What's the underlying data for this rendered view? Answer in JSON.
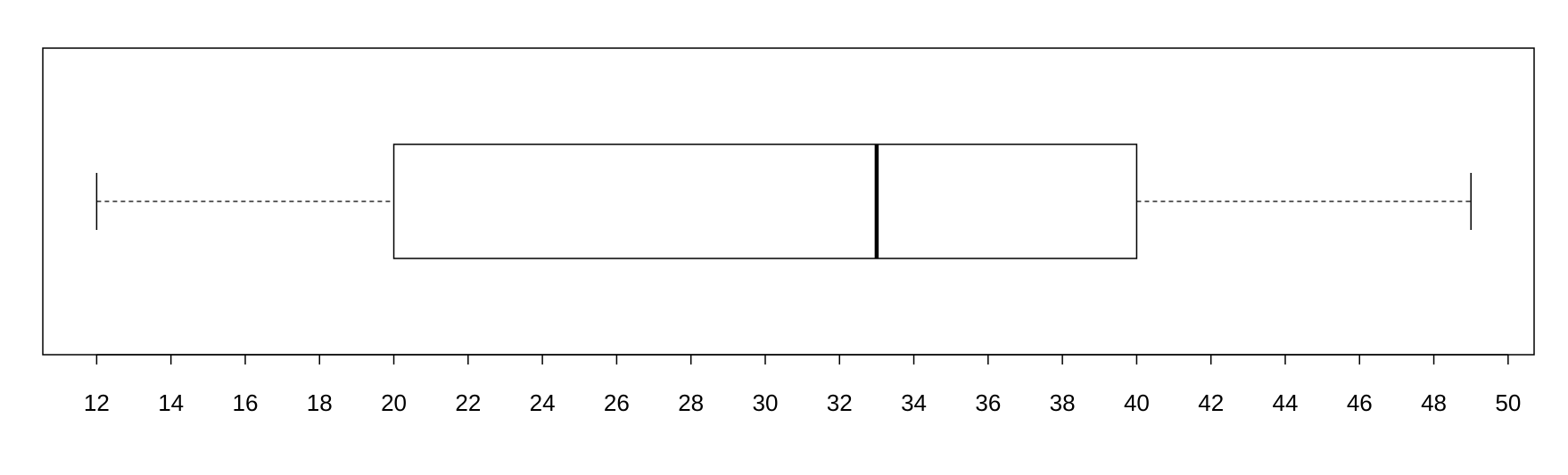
{
  "chart_data": {
    "type": "boxplot",
    "orientation": "horizontal",
    "title": "",
    "xlabel": "",
    "ylabel": "",
    "xlim": [
      10.55,
      50.7
    ],
    "ticks": [
      12,
      14,
      16,
      18,
      20,
      22,
      24,
      26,
      28,
      30,
      32,
      34,
      36,
      38,
      40,
      42,
      44,
      46,
      48,
      50
    ],
    "tick_labels": [
      "12",
      "14",
      "16",
      "18",
      "20",
      "22",
      "24",
      "26",
      "28",
      "30",
      "32",
      "34",
      "36",
      "38",
      "40",
      "42",
      "44",
      "46",
      "48",
      "50"
    ],
    "box": {
      "min": 12,
      "q1": 20,
      "median": 33,
      "q3": 40,
      "max": 49
    },
    "grid": false,
    "legend": "none",
    "colors": {
      "stroke": "#000000",
      "box_fill": "#ffffff",
      "background": "#ffffff"
    }
  }
}
